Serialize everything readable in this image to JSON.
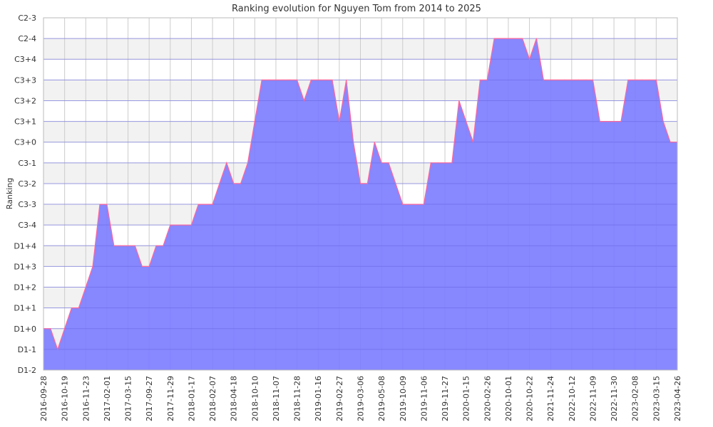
{
  "chart_data": {
    "type": "area",
    "title": "Ranking evolution for Nguyen Tom from 2014 to 2025",
    "xlabel": "",
    "ylabel": "Ranking",
    "y_levels": [
      "D1-2",
      "D1-1",
      "D1+0",
      "D1+1",
      "D1+2",
      "D1+3",
      "D1+4",
      "C3-4",
      "C3-3",
      "C3-2",
      "C3-1",
      "C3+0",
      "C3+1",
      "C3+2",
      "C3+3",
      "C3+4",
      "C2-4",
      "C2-3"
    ],
    "x_ticks": [
      "2016-09-28",
      "2016-10-19",
      "2016-11-23",
      "2017-02-01",
      "2017-03-15",
      "2017-09-27",
      "2017-11-29",
      "2018-01-17",
      "2018-02-07",
      "2018-04-18",
      "2018-10-10",
      "2018-11-07",
      "2018-11-28",
      "2019-01-16",
      "2019-02-27",
      "2019-03-06",
      "2019-05-08",
      "2019-10-09",
      "2019-11-06",
      "2019-11-27",
      "2020-01-15",
      "2020-02-26",
      "2020-10-01",
      "2020-10-22",
      "2021-11-24",
      "2022-10-12",
      "2022-11-09",
      "2022-11-30",
      "2023-02-08",
      "2023-03-15",
      "2023-04-26"
    ],
    "series": [
      {
        "values": [
          "D1+0",
          "D1+0",
          "D1-1",
          "D1+0",
          "D1+1",
          "D1+1",
          "D1+2",
          "D1+3",
          "C3-3",
          "C3-3",
          "D1+4",
          "D1+4",
          "D1+4",
          "D1+4",
          "D1+3",
          "D1+3",
          "D1+4",
          "D1+4",
          "C3-4",
          "C3-4",
          "C3-4",
          "C3-4",
          "C3-3",
          "C3-3",
          "C3-3",
          "C3-2",
          "C3-1",
          "C3-2",
          "C3-2",
          "C3-1",
          "C3+1",
          "C3+3",
          "C3+3",
          "C3+3",
          "C3+3",
          "C3+3",
          "C3+3",
          "C3+2",
          "C3+3",
          "C3+3",
          "C3+3",
          "C3+3",
          "C3+1",
          "C3+3",
          "C3+0",
          "C3-2",
          "C3-2",
          "C3+0",
          "C3-1",
          "C3-1",
          "C3-2",
          "C3-3",
          "C3-3",
          "C3-3",
          "C3-3",
          "C3-1",
          "C3-1",
          "C3-1",
          "C3-1",
          "C3+2",
          "C3+1",
          "C3+0",
          "C3+3",
          "C3+3",
          "C2-4",
          "C2-4",
          "C2-4",
          "C2-4",
          "C2-4",
          "C3+4",
          "C2-4",
          "C3+3",
          "C3+3",
          "C3+3",
          "C3+3",
          "C3+3",
          "C3+3",
          "C3+3",
          "C3+3",
          "C3+1",
          "C3+1",
          "C3+1",
          "C3+1",
          "C3+3",
          "C3+3",
          "C3+3",
          "C3+3",
          "C3+3",
          "C3+1",
          "C3+0",
          "C3+0"
        ]
      }
    ],
    "grid": true,
    "colors": {
      "fill": "#7b7bff",
      "stroke": "#ff6699",
      "band_light": "#f2f2f2",
      "band_white": "#ffffff",
      "grid": "#cccccc",
      "axis": "#555555"
    }
  }
}
